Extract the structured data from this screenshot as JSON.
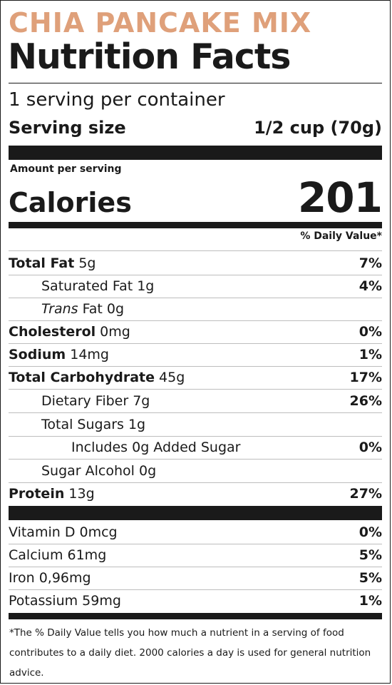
{
  "product_name": "CHIA PANCAKE MIX",
  "title": "Nutrition Facts",
  "servings_per_container": "1 serving per container",
  "serving_size": {
    "label": "Serving size",
    "value": "1/2 cup (70g)"
  },
  "amount_per_serving": "Amount per serving",
  "calories": {
    "label": "Calories",
    "value": "201"
  },
  "daily_value_header": "% Daily Value*",
  "nutrients": [
    {
      "name_bold": "Total Fat",
      "name_rest": " 5g",
      "pct": "7%"
    },
    {
      "name": "Saturated Fat 1g",
      "pct": "4%"
    },
    {
      "name_italic": "Trans",
      "name_rest": " Fat 0g",
      "pct": ""
    },
    {
      "name_bold": "Cholesterol",
      "name_rest": " 0mg",
      "pct": "0%"
    },
    {
      "name_bold": "Sodium",
      "name_rest": " 14mg",
      "pct": "1%"
    },
    {
      "name_bold": "Total Carbohydrate",
      "name_rest": " 45g",
      "pct": "17%"
    },
    {
      "name": "Dietary Fiber 7g",
      "pct": "26%"
    },
    {
      "name": "Total Sugars 1g",
      "pct": ""
    },
    {
      "name": "Includes 0g Added Sugar",
      "pct": "0%"
    },
    {
      "name": "Sugar Alcohol 0g",
      "pct": ""
    },
    {
      "name_bold": "Protein",
      "name_rest": " 13g",
      "pct": "27%"
    }
  ],
  "vitamins": [
    {
      "name": "Vitamin D 0mcg",
      "pct": "0%"
    },
    {
      "name": "Calcium 61mg",
      "pct": "5%"
    },
    {
      "name": "Iron 0,96mg",
      "pct": "5%"
    },
    {
      "name": "Potassium 59mg",
      "pct": "1%"
    }
  ],
  "footnote": "*The % Daily Value tells you how much a nutrient in a serving of food contributes to a daily diet. 2000 calories a day is used for general nutrition advice.",
  "colors": {
    "product_name": "#DFA07A",
    "text": "#1a1a1a"
  }
}
